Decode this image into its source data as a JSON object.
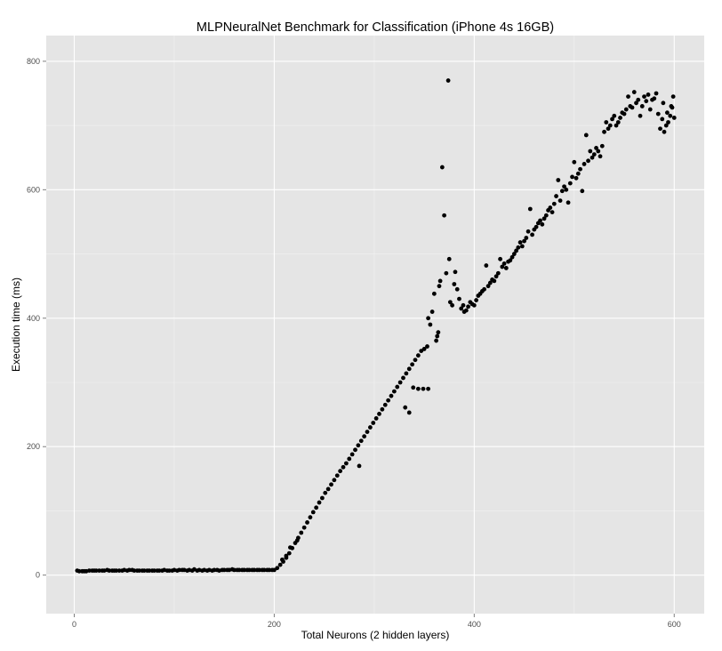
{
  "chart_data": {
    "type": "scatter",
    "title": "MLPNeuralNet Benchmark for Classification (iPhone 4s 16GB)",
    "xlabel": "Total Neurons (2 hidden layers)",
    "ylabel": "Execution time (ms)",
    "xlim": [
      -28,
      630
    ],
    "ylim": [
      -60,
      840
    ],
    "x_ticks": [
      0,
      200,
      400,
      600
    ],
    "y_ticks": [
      0,
      200,
      400,
      600,
      800
    ],
    "x_tick_labels": [
      "0",
      "200",
      "400",
      "600"
    ],
    "y_tick_labels": [
      "0",
      "200",
      "400",
      "600",
      "800"
    ],
    "grid": true,
    "legend": "none",
    "colors": {
      "panel": "#e5e5e5",
      "grid": "#ffffff",
      "point": "#000000"
    },
    "series": [
      {
        "points": [
          [
            3,
            7
          ],
          [
            5,
            6
          ],
          [
            8,
            6
          ],
          [
            10,
            6
          ],
          [
            12,
            6
          ],
          [
            15,
            7
          ],
          [
            18,
            7
          ],
          [
            20,
            7
          ],
          [
            22,
            7
          ],
          [
            25,
            7
          ],
          [
            28,
            7
          ],
          [
            30,
            7
          ],
          [
            33,
            8
          ],
          [
            35,
            7
          ],
          [
            38,
            7
          ],
          [
            40,
            7
          ],
          [
            42,
            7
          ],
          [
            45,
            7
          ],
          [
            48,
            7
          ],
          [
            50,
            8
          ],
          [
            53,
            7
          ],
          [
            55,
            8
          ],
          [
            58,
            8
          ],
          [
            60,
            7
          ],
          [
            63,
            7
          ],
          [
            65,
            7
          ],
          [
            68,
            7
          ],
          [
            70,
            7
          ],
          [
            73,
            7
          ],
          [
            75,
            7
          ],
          [
            78,
            7
          ],
          [
            80,
            7
          ],
          [
            83,
            7
          ],
          [
            85,
            7
          ],
          [
            88,
            7
          ],
          [
            90,
            8
          ],
          [
            93,
            7
          ],
          [
            95,
            7
          ],
          [
            98,
            7
          ],
          [
            100,
            8
          ],
          [
            103,
            7
          ],
          [
            105,
            8
          ],
          [
            108,
            8
          ],
          [
            110,
            8
          ],
          [
            113,
            7
          ],
          [
            115,
            8
          ],
          [
            118,
            7
          ],
          [
            120,
            9
          ],
          [
            123,
            7
          ],
          [
            125,
            8
          ],
          [
            128,
            7
          ],
          [
            130,
            8
          ],
          [
            133,
            7
          ],
          [
            135,
            8
          ],
          [
            138,
            7
          ],
          [
            140,
            8
          ],
          [
            143,
            8
          ],
          [
            145,
            7
          ],
          [
            148,
            8
          ],
          [
            150,
            8
          ],
          [
            153,
            8
          ],
          [
            155,
            8
          ],
          [
            158,
            9
          ],
          [
            160,
            8
          ],
          [
            163,
            8
          ],
          [
            165,
            8
          ],
          [
            168,
            8
          ],
          [
            170,
            8
          ],
          [
            173,
            8
          ],
          [
            175,
            8
          ],
          [
            178,
            8
          ],
          [
            180,
            8
          ],
          [
            183,
            8
          ],
          [
            185,
            8
          ],
          [
            188,
            8
          ],
          [
            190,
            8
          ],
          [
            193,
            8
          ],
          [
            195,
            8
          ],
          [
            198,
            8
          ],
          [
            200,
            8
          ],
          [
            203,
            11
          ],
          [
            206,
            16
          ],
          [
            209,
            21
          ],
          [
            212,
            27
          ],
          [
            215,
            34
          ],
          [
            218,
            42
          ],
          [
            221,
            50
          ],
          [
            224,
            58
          ],
          [
            227,
            66
          ],
          [
            230,
            74
          ],
          [
            233,
            82
          ],
          [
            236,
            90
          ],
          [
            239,
            98
          ],
          [
            242,
            105
          ],
          [
            245,
            113
          ],
          [
            248,
            120
          ],
          [
            251,
            128
          ],
          [
            254,
            134
          ],
          [
            257,
            141
          ],
          [
            260,
            148
          ],
          [
            263,
            155
          ],
          [
            266,
            162
          ],
          [
            269,
            168
          ],
          [
            272,
            174
          ],
          [
            275,
            181
          ],
          [
            278,
            188
          ],
          [
            281,
            195
          ],
          [
            284,
            202
          ],
          [
            287,
            209
          ],
          [
            290,
            216
          ],
          [
            293,
            223
          ],
          [
            296,
            230
          ],
          [
            299,
            237
          ],
          [
            302,
            244
          ],
          [
            305,
            251
          ],
          [
            308,
            258
          ],
          [
            311,
            265
          ],
          [
            314,
            272
          ],
          [
            317,
            279
          ],
          [
            320,
            286
          ],
          [
            323,
            293
          ],
          [
            326,
            300
          ],
          [
            329,
            307
          ],
          [
            332,
            314
          ],
          [
            335,
            321
          ],
          [
            338,
            328
          ],
          [
            341,
            335
          ],
          [
            344,
            342
          ],
          [
            347,
            349
          ],
          [
            350,
            352
          ],
          [
            353,
            356
          ],
          [
            331,
            261
          ],
          [
            335,
            253
          ],
          [
            339,
            292
          ],
          [
            344,
            290
          ],
          [
            349,
            290
          ],
          [
            354,
            290
          ],
          [
            285,
            170
          ],
          [
            223,
            54
          ],
          [
            216,
            43
          ],
          [
            212,
            30
          ],
          [
            208,
            24
          ],
          [
            354,
            400
          ],
          [
            356,
            390
          ],
          [
            358,
            410
          ],
          [
            360,
            438
          ],
          [
            362,
            365
          ],
          [
            363,
            372
          ],
          [
            364,
            378
          ],
          [
            365,
            450
          ],
          [
            366,
            458
          ],
          [
            368,
            635
          ],
          [
            370,
            560
          ],
          [
            372,
            470
          ],
          [
            374,
            770
          ],
          [
            375,
            492
          ],
          [
            376,
            425
          ],
          [
            378,
            420
          ],
          [
            380,
            453
          ],
          [
            381,
            472
          ],
          [
            383,
            445
          ],
          [
            385,
            430
          ],
          [
            387,
            415
          ],
          [
            389,
            420
          ],
          [
            390,
            410
          ],
          [
            392,
            412
          ],
          [
            394,
            418
          ],
          [
            396,
            425
          ],
          [
            398,
            422
          ],
          [
            400,
            420
          ],
          [
            402,
            428
          ],
          [
            404,
            435
          ],
          [
            406,
            438
          ],
          [
            408,
            442
          ],
          [
            410,
            445
          ],
          [
            412,
            482
          ],
          [
            414,
            450
          ],
          [
            416,
            455
          ],
          [
            418,
            460
          ],
          [
            420,
            458
          ],
          [
            422,
            465
          ],
          [
            424,
            470
          ],
          [
            426,
            492
          ],
          [
            428,
            480
          ],
          [
            430,
            485
          ],
          [
            432,
            478
          ],
          [
            434,
            488
          ],
          [
            436,
            490
          ],
          [
            438,
            495
          ],
          [
            440,
            500
          ],
          [
            442,
            505
          ],
          [
            444,
            510
          ],
          [
            446,
            518
          ],
          [
            448,
            512
          ],
          [
            450,
            520
          ],
          [
            452,
            525
          ],
          [
            454,
            535
          ],
          [
            456,
            570
          ],
          [
            458,
            530
          ],
          [
            460,
            538
          ],
          [
            462,
            542
          ],
          [
            464,
            548
          ],
          [
            466,
            552
          ],
          [
            468,
            546
          ],
          [
            470,
            555
          ],
          [
            472,
            560
          ],
          [
            474,
            568
          ],
          [
            476,
            572
          ],
          [
            478,
            565
          ],
          [
            480,
            578
          ],
          [
            482,
            590
          ],
          [
            484,
            615
          ],
          [
            486,
            583
          ],
          [
            488,
            598
          ],
          [
            490,
            605
          ],
          [
            492,
            600
          ],
          [
            494,
            580
          ],
          [
            496,
            610
          ],
          [
            498,
            620
          ],
          [
            500,
            643
          ],
          [
            502,
            618
          ],
          [
            504,
            625
          ],
          [
            506,
            632
          ],
          [
            508,
            598
          ],
          [
            510,
            640
          ],
          [
            512,
            685
          ],
          [
            514,
            645
          ],
          [
            516,
            660
          ],
          [
            518,
            650
          ],
          [
            520,
            655
          ],
          [
            522,
            665
          ],
          [
            524,
            660
          ],
          [
            526,
            652
          ],
          [
            528,
            668
          ],
          [
            530,
            690
          ],
          [
            532,
            705
          ],
          [
            534,
            695
          ],
          [
            536,
            700
          ],
          [
            538,
            710
          ],
          [
            540,
            715
          ],
          [
            542,
            700
          ],
          [
            544,
            705
          ],
          [
            546,
            712
          ],
          [
            548,
            720
          ],
          [
            550,
            718
          ],
          [
            552,
            725
          ],
          [
            554,
            745
          ],
          [
            556,
            730
          ],
          [
            558,
            728
          ],
          [
            560,
            752
          ],
          [
            562,
            735
          ],
          [
            564,
            740
          ],
          [
            566,
            715
          ],
          [
            568,
            730
          ],
          [
            570,
            745
          ],
          [
            572,
            738
          ],
          [
            574,
            748
          ],
          [
            576,
            725
          ],
          [
            578,
            740
          ],
          [
            580,
            742
          ],
          [
            582,
            750
          ],
          [
            584,
            718
          ],
          [
            586,
            695
          ],
          [
            588,
            710
          ],
          [
            590,
            690
          ],
          [
            592,
            700
          ],
          [
            594,
            705
          ],
          [
            596,
            715
          ],
          [
            598,
            728
          ],
          [
            600,
            712
          ],
          [
            597,
            730
          ],
          [
            599,
            745
          ],
          [
            593,
            720
          ],
          [
            589,
            735
          ]
        ]
      }
    ]
  }
}
